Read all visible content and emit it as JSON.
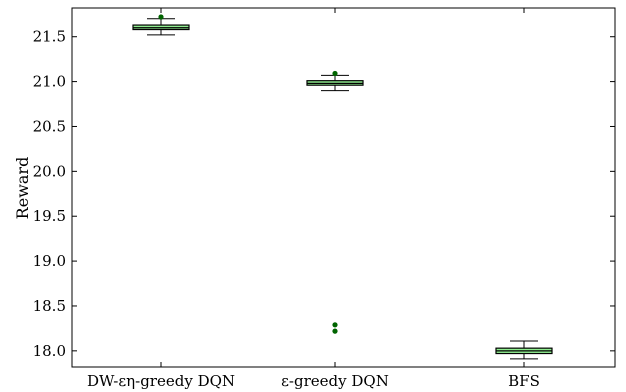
{
  "chart_data": {
    "type": "box",
    "title": "",
    "xlabel": "",
    "ylabel": "Reward",
    "ylim": [
      17.82,
      21.82
    ],
    "yticks": [
      "18.0",
      "18.5",
      "19.0",
      "19.5",
      "20.0",
      "20.5",
      "21.0",
      "21.5"
    ],
    "grid": false,
    "box_fill": "#90ee90",
    "outlier_color": "#006400",
    "categories": [
      "DW-εη-greedy DQN",
      "ε-greedy DQN",
      "BFS"
    ],
    "boxes": [
      {
        "whisker_low": 21.52,
        "q1": 21.58,
        "median": 21.6,
        "q3": 21.63,
        "whisker_high": 21.7,
        "outliers": [
          21.72
        ]
      },
      {
        "whisker_low": 20.9,
        "q1": 20.96,
        "median": 20.98,
        "q3": 21.01,
        "whisker_high": 21.07,
        "outliers": [
          21.09,
          18.29,
          18.22
        ]
      },
      {
        "whisker_low": 17.91,
        "q1": 17.97,
        "median": 18.0,
        "q3": 18.03,
        "whisker_high": 18.11,
        "outliers": []
      }
    ]
  }
}
